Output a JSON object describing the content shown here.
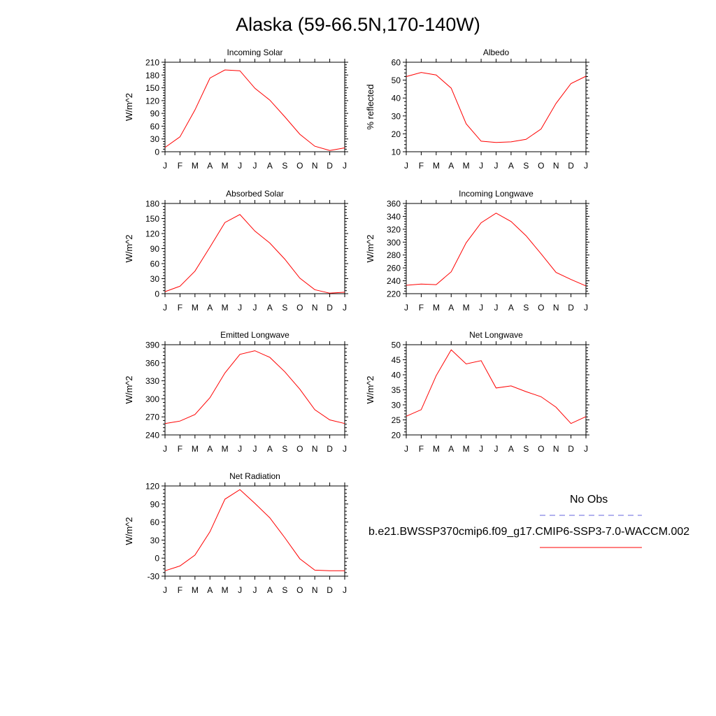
{
  "title": "Alaska (59-66.5N,170-140W)",
  "months": [
    "J",
    "F",
    "M",
    "A",
    "M",
    "J",
    "J",
    "A",
    "S",
    "O",
    "N",
    "D",
    "J"
  ],
  "series_color": "#ff0000",
  "obs_color": "#6666dd",
  "chart_data": [
    {
      "type": "line",
      "title": "Incoming Solar",
      "ylabel": "W/m^2",
      "ylim": [
        0,
        210
      ],
      "yticks": [
        0,
        30,
        60,
        90,
        120,
        150,
        180,
        210
      ],
      "values": [
        10,
        35,
        98,
        173,
        192,
        190,
        149,
        121,
        82,
        41,
        13,
        3,
        9
      ]
    },
    {
      "type": "line",
      "title": "Albedo",
      "ylabel": "% reflected",
      "ylim": [
        10,
        60
      ],
      "yticks": [
        10,
        20,
        30,
        40,
        50,
        60
      ],
      "values": [
        52,
        54.3,
        52.9,
        45.5,
        25.6,
        15.9,
        15.2,
        15.5,
        16.9,
        22.7,
        37,
        48.1,
        52.2
      ]
    },
    {
      "type": "line",
      "title": "Absorbed Solar",
      "ylabel": "W/m^2",
      "ylim": [
        0,
        180
      ],
      "yticks": [
        0,
        30,
        60,
        90,
        120,
        150,
        180
      ],
      "values": [
        4,
        15,
        45,
        93,
        142,
        158,
        125,
        101,
        69,
        31,
        8,
        1,
        3
      ]
    },
    {
      "type": "line",
      "title": "Incoming Longwave",
      "ylabel": "W/m^2",
      "ylim": [
        220,
        360
      ],
      "yticks": [
        220,
        240,
        260,
        280,
        300,
        320,
        340,
        360
      ],
      "values": [
        233,
        235,
        234,
        254,
        299,
        330,
        345,
        332,
        310,
        282,
        253,
        242,
        232
      ]
    },
    {
      "type": "line",
      "title": "Emitted Longwave",
      "ylabel": "W/m^2",
      "ylim": [
        240,
        390
      ],
      "yticks": [
        240,
        270,
        300,
        330,
        360,
        390
      ],
      "values": [
        259,
        263,
        274,
        302,
        343,
        374,
        380,
        369,
        345,
        316,
        282,
        265,
        259
      ]
    },
    {
      "type": "line",
      "title": "Net Longwave",
      "ylabel": "W/m^2",
      "ylim": [
        20,
        50
      ],
      "yticks": [
        20,
        25,
        30,
        35,
        40,
        45,
        50
      ],
      "values": [
        26.2,
        28.4,
        39.7,
        48.3,
        43.6,
        44.7,
        35.6,
        36.3,
        34.4,
        32.7,
        29.2,
        23.8,
        26.1
      ]
    },
    {
      "type": "line",
      "title": "Net Radiation",
      "ylabel": "W/m^2",
      "ylim": [
        -30,
        120
      ],
      "yticks": [
        -30,
        0,
        30,
        60,
        90,
        120
      ],
      "values": [
        -21,
        -13,
        5,
        44,
        98,
        114,
        91,
        67,
        34,
        -1,
        -20,
        -21,
        -21
      ]
    }
  ],
  "legend": {
    "obs_label": "No Obs",
    "model_label": "b.e21.BWSSP370cmip6.f09_g17.CMIP6-SSP3-7.0-WACCM.002"
  }
}
